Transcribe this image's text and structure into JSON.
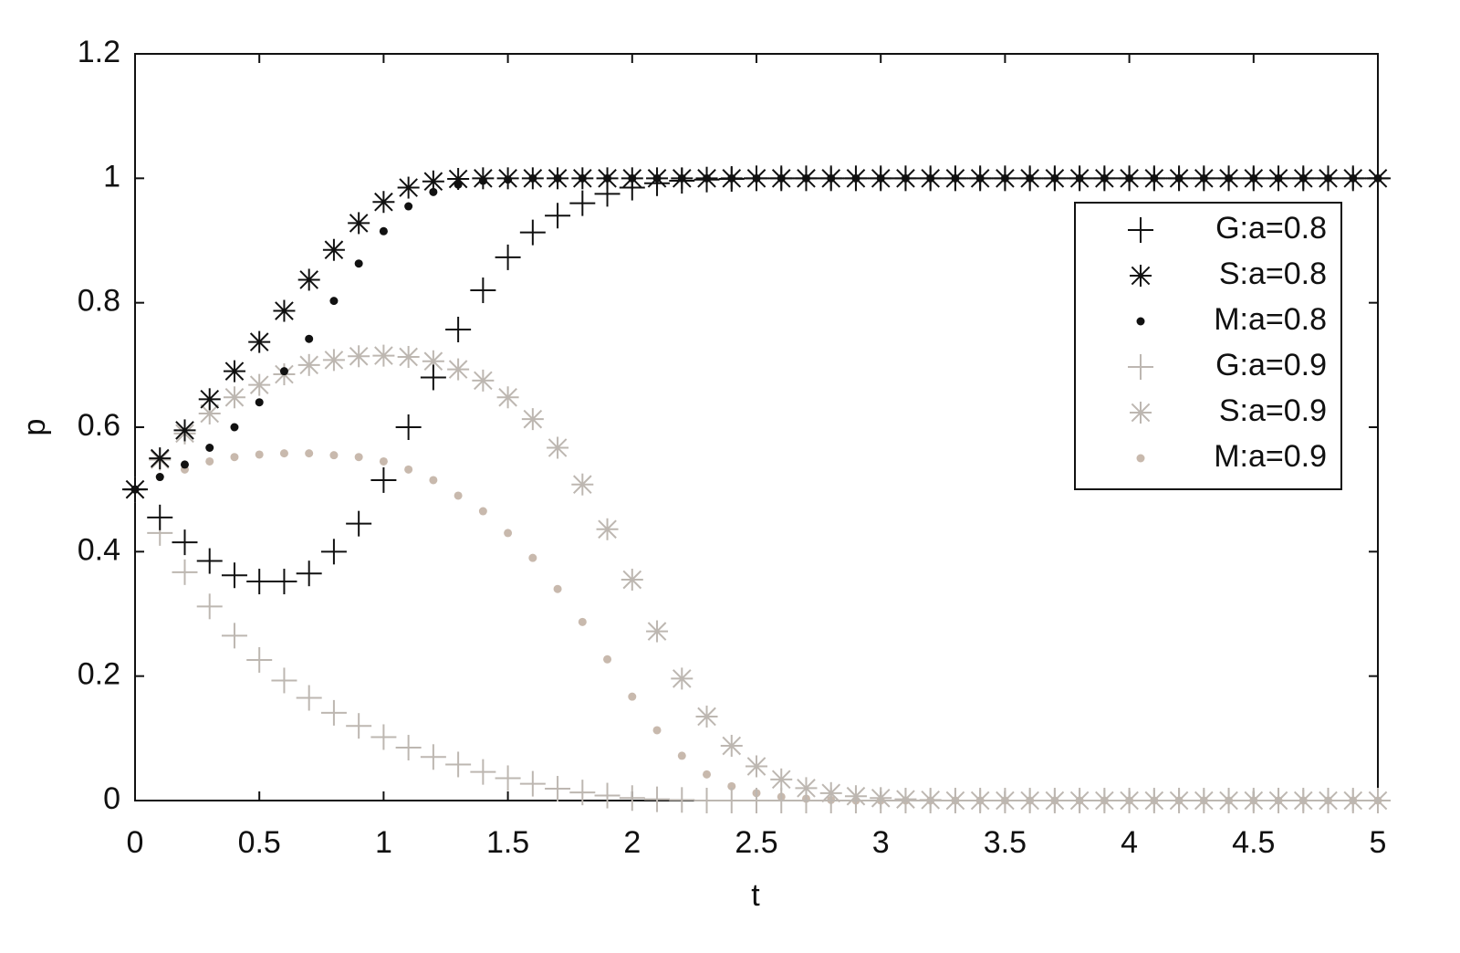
{
  "chart_data": {
    "type": "scatter",
    "xlabel": "t",
    "ylabel": "p",
    "x": [
      0,
      0.1,
      0.2,
      0.3,
      0.4,
      0.5,
      0.6,
      0.7,
      0.8,
      0.9,
      1,
      1.1,
      1.2,
      1.3,
      1.4,
      1.5,
      1.6,
      1.7,
      1.8,
      1.9,
      2,
      2.1,
      2.2,
      2.3,
      2.4,
      2.5,
      2.6,
      2.7,
      2.8,
      2.9,
      3,
      3.1,
      3.2,
      3.3,
      3.4,
      3.5,
      3.6,
      3.7,
      3.8,
      3.9,
      4,
      4.1,
      4.2,
      4.3,
      4.4,
      4.5,
      4.6,
      4.7,
      4.8,
      4.9,
      5
    ],
    "xlim": [
      0,
      5
    ],
    "xticks": [
      0,
      0.5,
      1,
      1.5,
      2,
      2.5,
      3,
      3.5,
      4,
      4.5,
      5
    ],
    "ylim": [
      0,
      1.2
    ],
    "yticks": [
      0,
      0.2,
      0.4,
      0.6,
      0.8,
      1,
      1.2
    ],
    "legend": "upper right",
    "series": [
      {
        "name": "G:a=0.8",
        "color": "#111111",
        "marker": "plus",
        "values": [
          0.5,
          0.455,
          0.415,
          0.385,
          0.362,
          0.352,
          0.352,
          0.365,
          0.4,
          0.445,
          0.515,
          0.6,
          0.68,
          0.757,
          0.82,
          0.873,
          0.913,
          0.94,
          0.96,
          0.975,
          0.985,
          0.992,
          0.996,
          0.998,
          0.999,
          1,
          1,
          1,
          1,
          1,
          1,
          1,
          1,
          1,
          1,
          1,
          1,
          1,
          1,
          1,
          1,
          1,
          1,
          1,
          1,
          1,
          1,
          1,
          1,
          1,
          1
        ]
      },
      {
        "name": "S:a=0.8",
        "color": "#111111",
        "marker": "star",
        "values": [
          0.5,
          0.55,
          0.595,
          0.645,
          0.69,
          0.737,
          0.787,
          0.837,
          0.885,
          0.928,
          0.962,
          0.985,
          0.995,
          0.999,
          1,
          1,
          1,
          1,
          1,
          1,
          1,
          1,
          1,
          1,
          1,
          1,
          1,
          1,
          1,
          1,
          1,
          1,
          1,
          1,
          1,
          1,
          1,
          1,
          1,
          1,
          1,
          1,
          1,
          1,
          1,
          1,
          1,
          1,
          1,
          1,
          1
        ]
      },
      {
        "name": "M:a=0.8",
        "color": "#111111",
        "marker": "dot",
        "values": [
          0.5,
          0.52,
          0.54,
          0.567,
          0.6,
          0.64,
          0.69,
          0.742,
          0.803,
          0.863,
          0.915,
          0.955,
          0.978,
          0.99,
          0.996,
          0.998,
          1,
          1,
          1,
          1,
          1,
          1,
          1,
          1,
          1,
          1,
          1,
          1,
          1,
          1,
          1,
          1,
          1,
          1,
          1,
          1,
          1,
          1,
          1,
          1,
          1,
          1,
          1,
          1,
          1,
          1,
          1,
          1,
          1,
          1,
          1
        ]
      },
      {
        "name": "G:a=0.9",
        "color": "#bdb7b1",
        "marker": "plus",
        "values": [
          0.5,
          0.43,
          0.367,
          0.312,
          0.265,
          0.226,
          0.193,
          0.165,
          0.141,
          0.12,
          0.102,
          0.085,
          0.07,
          0.058,
          0.046,
          0.036,
          0.027,
          0.019,
          0.013,
          0.008,
          0.004,
          0.002,
          0.001,
          0,
          0,
          0,
          0,
          0,
          0,
          0,
          0,
          0,
          0,
          0,
          0,
          0,
          0,
          0,
          0,
          0,
          0,
          0,
          0,
          0,
          0,
          0,
          0,
          0,
          0,
          0,
          0
        ]
      },
      {
        "name": "S:a=0.9",
        "color": "#bdb7b1",
        "marker": "star",
        "values": [
          0.5,
          0.548,
          0.59,
          0.622,
          0.648,
          0.668,
          0.685,
          0.7,
          0.708,
          0.714,
          0.715,
          0.713,
          0.706,
          0.693,
          0.675,
          0.648,
          0.613,
          0.567,
          0.508,
          0.436,
          0.355,
          0.272,
          0.196,
          0.135,
          0.088,
          0.055,
          0.034,
          0.02,
          0.012,
          0.007,
          0.004,
          0.002,
          0.001,
          0,
          0,
          0,
          0,
          0,
          0,
          0,
          0,
          0,
          0,
          0,
          0,
          0,
          0,
          0,
          0,
          0,
          0
        ]
      },
      {
        "name": "M:a=0.9",
        "color": "#c8b9ad",
        "marker": "dot",
        "values": [
          0.5,
          0.52,
          0.532,
          0.545,
          0.552,
          0.556,
          0.558,
          0.558,
          0.555,
          0.552,
          0.545,
          0.532,
          0.515,
          0.49,
          0.465,
          0.43,
          0.39,
          0.34,
          0.287,
          0.227,
          0.167,
          0.113,
          0.072,
          0.042,
          0.023,
          0.012,
          0.006,
          0.003,
          0.001,
          0,
          0,
          0,
          0,
          0,
          0,
          0,
          0,
          0,
          0,
          0,
          0,
          0,
          0,
          0,
          0,
          0,
          0,
          0,
          0,
          0,
          0
        ]
      }
    ]
  }
}
